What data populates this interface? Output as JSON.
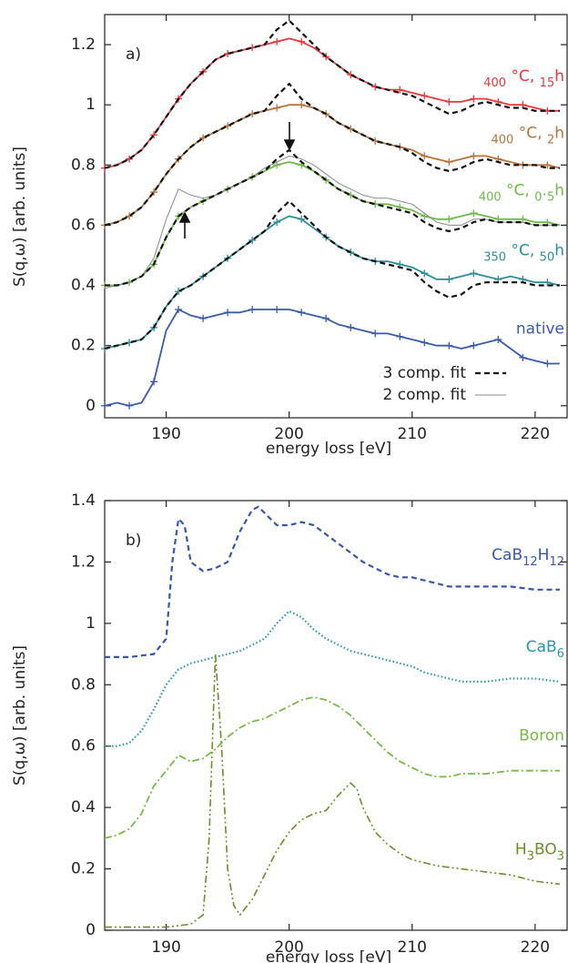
{
  "chart_data": [
    {
      "type": "line",
      "panel_label": "a)",
      "x_label": "energy loss [eV]",
      "y_label": "S(q,ω)  [arb. units]",
      "xlim": [
        185,
        222.6
      ],
      "ylim": [
        -0.04,
        1.3
      ],
      "xticks": [
        190,
        200,
        210,
        220
      ],
      "yticks": [
        0,
        0.2,
        0.4,
        0.6,
        0.8,
        1,
        1.2
      ],
      "legend": "bottom-right",
      "x": [
        185,
        186,
        187,
        188,
        189,
        190,
        191,
        192,
        193,
        194,
        195,
        196,
        197,
        198,
        199,
        200,
        201,
        202,
        203,
        204,
        205,
        206,
        207,
        208,
        209,
        210,
        211,
        212,
        213,
        214,
        215,
        216,
        217,
        218,
        219,
        220,
        221,
        222
      ],
      "series": [
        {
          "name": "400 °C, 15h",
          "color": "#e8383d",
          "style": "solid",
          "marker": "plus",
          "name_placement": "inline",
          "values": [
            0.79,
            0.8,
            0.82,
            0.85,
            0.9,
            0.96,
            1.02,
            1.07,
            1.11,
            1.15,
            1.17,
            1.18,
            1.19,
            1.2,
            1.21,
            1.22,
            1.21,
            1.19,
            1.16,
            1.13,
            1.1,
            1.08,
            1.06,
            1.05,
            1.05,
            1.04,
            1.03,
            1.02,
            1.01,
            1.01,
            1.02,
            1.02,
            1.01,
            1.0,
            1.0,
            0.99,
            0.98,
            0.98
          ]
        },
        {
          "name": "400 °C, 2h",
          "color": "#b8733a",
          "style": "solid",
          "marker": "plus",
          "name_placement": "inline",
          "values": [
            0.6,
            0.61,
            0.63,
            0.66,
            0.71,
            0.77,
            0.82,
            0.86,
            0.89,
            0.91,
            0.93,
            0.95,
            0.97,
            0.98,
            0.99,
            1.0,
            1.0,
            0.99,
            0.97,
            0.94,
            0.92,
            0.9,
            0.88,
            0.87,
            0.86,
            0.85,
            0.83,
            0.82,
            0.81,
            0.82,
            0.83,
            0.83,
            0.82,
            0.81,
            0.8,
            0.8,
            0.8,
            0.79
          ]
        },
        {
          "name": "400 °C, 0.5h",
          "color": "#6dbb4a",
          "style": "solid",
          "marker": "plus",
          "name_placement": "inline",
          "values": [
            0.4,
            0.4,
            0.41,
            0.43,
            0.47,
            0.56,
            0.63,
            0.66,
            0.68,
            0.7,
            0.72,
            0.74,
            0.76,
            0.78,
            0.8,
            0.81,
            0.8,
            0.78,
            0.75,
            0.72,
            0.7,
            0.68,
            0.67,
            0.67,
            0.66,
            0.65,
            0.63,
            0.62,
            0.62,
            0.63,
            0.64,
            0.63,
            0.62,
            0.62,
            0.62,
            0.61,
            0.61,
            0.6
          ]
        },
        {
          "name": "350 °C, 50h",
          "color": "#2a8f9a",
          "style": "solid",
          "marker": "plus",
          "name_placement": "inline",
          "values": [
            0.19,
            0.2,
            0.21,
            0.22,
            0.26,
            0.33,
            0.38,
            0.4,
            0.43,
            0.46,
            0.49,
            0.52,
            0.55,
            0.58,
            0.61,
            0.63,
            0.62,
            0.59,
            0.56,
            0.53,
            0.51,
            0.49,
            0.48,
            0.48,
            0.47,
            0.46,
            0.44,
            0.42,
            0.42,
            0.43,
            0.44,
            0.43,
            0.42,
            0.43,
            0.42,
            0.41,
            0.41,
            0.4
          ]
        },
        {
          "name": "native",
          "color": "#3c5aaa",
          "style": "solid",
          "marker": "plus",
          "name_placement": "inline",
          "values": [
            0.0,
            0.01,
            0.0,
            0.01,
            0.08,
            0.25,
            0.32,
            0.3,
            0.29,
            0.3,
            0.31,
            0.31,
            0.32,
            0.32,
            0.32,
            0.32,
            0.31,
            0.3,
            0.29,
            0.27,
            0.26,
            0.25,
            0.24,
            0.24,
            0.23,
            0.22,
            0.21,
            0.2,
            0.2,
            0.19,
            0.2,
            0.21,
            0.22,
            0.19,
            0.16,
            0.15,
            0.14,
            0.14
          ]
        },
        {
          "name": "2 comp. fit",
          "color": "#888888",
          "style": "thin",
          "name_placement": "legend",
          "values": [
            0.39,
            0.4,
            0.41,
            0.43,
            0.49,
            0.62,
            0.72,
            0.7,
            0.69,
            0.7,
            0.72,
            0.74,
            0.76,
            0.79,
            0.81,
            0.83,
            0.82,
            0.8,
            0.77,
            0.74,
            0.72,
            0.7,
            0.69,
            0.69,
            0.68,
            0.67,
            0.64,
            0.61,
            0.6,
            0.6,
            0.62,
            0.62,
            0.61,
            0.61,
            0.61,
            0.6,
            0.6,
            0.6
          ]
        },
        {
          "name": "3 comp. fit",
          "color": "#111111",
          "style": "dashed",
          "name_placement": "legend",
          "values": [
            0.79,
            0.8,
            0.82,
            0.85,
            0.9,
            0.96,
            1.02,
            1.07,
            1.11,
            1.15,
            1.17,
            1.18,
            1.19,
            1.2,
            1.25,
            1.28,
            1.24,
            1.2,
            1.16,
            1.13,
            1.1,
            1.08,
            1.06,
            1.05,
            1.04,
            1.03,
            1.01,
            0.99,
            0.97,
            0.98,
            1.0,
            1.01,
            1.0,
            0.99,
            0.99,
            0.98,
            0.98,
            0.98
          ]
        },
        {
          "color": "#111111",
          "style": "dashed",
          "values": [
            0.6,
            0.61,
            0.63,
            0.66,
            0.71,
            0.77,
            0.82,
            0.86,
            0.89,
            0.91,
            0.93,
            0.95,
            0.97,
            0.98,
            1.03,
            1.07,
            1.02,
            0.99,
            0.97,
            0.94,
            0.92,
            0.9,
            0.88,
            0.87,
            0.86,
            0.84,
            0.81,
            0.79,
            0.78,
            0.79,
            0.81,
            0.82,
            0.81,
            0.8,
            0.8,
            0.8,
            0.79,
            0.79
          ]
        },
        {
          "color": "#111111",
          "style": "dashed",
          "values": [
            0.4,
            0.4,
            0.41,
            0.43,
            0.47,
            0.56,
            0.63,
            0.66,
            0.68,
            0.7,
            0.72,
            0.74,
            0.76,
            0.78,
            0.82,
            0.85,
            0.81,
            0.78,
            0.75,
            0.72,
            0.7,
            0.68,
            0.67,
            0.66,
            0.65,
            0.64,
            0.61,
            0.59,
            0.58,
            0.59,
            0.61,
            0.62,
            0.61,
            0.61,
            0.61,
            0.6,
            0.6,
            0.6
          ]
        },
        {
          "color": "#111111",
          "style": "dashed",
          "values": [
            0.19,
            0.2,
            0.21,
            0.22,
            0.26,
            0.33,
            0.38,
            0.4,
            0.43,
            0.46,
            0.49,
            0.52,
            0.55,
            0.58,
            0.64,
            0.68,
            0.64,
            0.6,
            0.56,
            0.53,
            0.51,
            0.49,
            0.48,
            0.47,
            0.46,
            0.45,
            0.41,
            0.38,
            0.36,
            0.37,
            0.4,
            0.41,
            0.41,
            0.41,
            0.41,
            0.4,
            0.4,
            0.4
          ]
        }
      ]
    },
    {
      "type": "line",
      "panel_label": "b)",
      "x_label": "energy loss [eV]",
      "y_label": "S(q,ω)  [arb. units]",
      "xlim": [
        185,
        222.6
      ],
      "ylim": [
        0,
        1.4
      ],
      "xticks": [
        190,
        200,
        210,
        220
      ],
      "yticks": [
        0,
        0.2,
        0.4,
        0.6,
        0.8,
        1,
        1.2,
        1.4
      ],
      "series": [
        {
          "name": "CaB12H12",
          "color": "#3b55a8",
          "style": "dashed",
          "name_placement": "inline",
          "x": [
            185,
            187,
            189,
            190,
            190.5,
            191,
            191.5,
            192,
            193,
            194,
            195,
            196,
            197,
            197.5,
            198,
            199,
            200,
            201,
            202,
            203,
            204,
            205,
            206,
            207,
            208,
            209,
            210,
            211,
            212,
            213,
            214,
            216,
            218,
            220,
            222
          ],
          "values": [
            0.89,
            0.89,
            0.9,
            0.95,
            1.2,
            1.34,
            1.32,
            1.2,
            1.17,
            1.18,
            1.2,
            1.3,
            1.37,
            1.38,
            1.36,
            1.32,
            1.32,
            1.33,
            1.32,
            1.29,
            1.26,
            1.23,
            1.2,
            1.18,
            1.16,
            1.15,
            1.15,
            1.14,
            1.13,
            1.12,
            1.12,
            1.12,
            1.12,
            1.11,
            1.11
          ]
        },
        {
          "name": "CaB6",
          "color": "#2a95a8",
          "style": "dotted",
          "name_placement": "inline",
          "x": [
            185,
            186,
            187,
            188,
            189,
            190,
            191,
            192,
            193,
            194,
            195,
            196,
            197,
            198,
            199,
            200,
            201,
            202,
            203,
            204,
            205,
            206,
            207,
            208,
            209,
            210,
            211,
            212,
            213,
            214,
            216,
            218,
            220,
            222
          ],
          "values": [
            0.6,
            0.6,
            0.61,
            0.65,
            0.72,
            0.8,
            0.85,
            0.87,
            0.88,
            0.89,
            0.9,
            0.91,
            0.93,
            0.95,
            1.0,
            1.04,
            1.02,
            0.98,
            0.95,
            0.93,
            0.91,
            0.9,
            0.89,
            0.88,
            0.87,
            0.86,
            0.84,
            0.83,
            0.82,
            0.81,
            0.81,
            0.82,
            0.82,
            0.81
          ]
        },
        {
          "name": "Boron",
          "color": "#78b94a",
          "style": "dashdot",
          "name_placement": "inline",
          "x": [
            185,
            186,
            187,
            188,
            189,
            190,
            191,
            192,
            193,
            194,
            195,
            196,
            197,
            198,
            199,
            200,
            201,
            202,
            203,
            204,
            205,
            206,
            207,
            208,
            209,
            210,
            211,
            212,
            213,
            214,
            216,
            218,
            220,
            222
          ],
          "values": [
            0.3,
            0.31,
            0.33,
            0.38,
            0.47,
            0.52,
            0.57,
            0.55,
            0.56,
            0.59,
            0.63,
            0.66,
            0.68,
            0.69,
            0.71,
            0.73,
            0.75,
            0.76,
            0.75,
            0.73,
            0.7,
            0.66,
            0.62,
            0.58,
            0.55,
            0.53,
            0.51,
            0.5,
            0.5,
            0.51,
            0.51,
            0.52,
            0.52,
            0.52
          ]
        },
        {
          "name": "H3BO3",
          "color": "#6b8e2a",
          "style": "dashdotdot",
          "name_placement": "inline",
          "x": [
            185,
            188,
            190,
            192,
            193,
            193.5,
            194,
            194.5,
            195,
            195.5,
            196,
            197,
            198,
            199,
            200,
            201,
            202,
            203,
            204,
            205,
            205.5,
            206,
            207,
            208,
            209,
            210,
            212,
            214,
            216,
            218,
            220,
            222
          ],
          "values": [
            0.01,
            0.01,
            0.01,
            0.02,
            0.05,
            0.3,
            0.9,
            0.6,
            0.2,
            0.08,
            0.05,
            0.1,
            0.18,
            0.26,
            0.32,
            0.36,
            0.38,
            0.39,
            0.44,
            0.48,
            0.46,
            0.4,
            0.32,
            0.28,
            0.25,
            0.23,
            0.21,
            0.2,
            0.19,
            0.18,
            0.16,
            0.15
          ]
        }
      ]
    }
  ]
}
